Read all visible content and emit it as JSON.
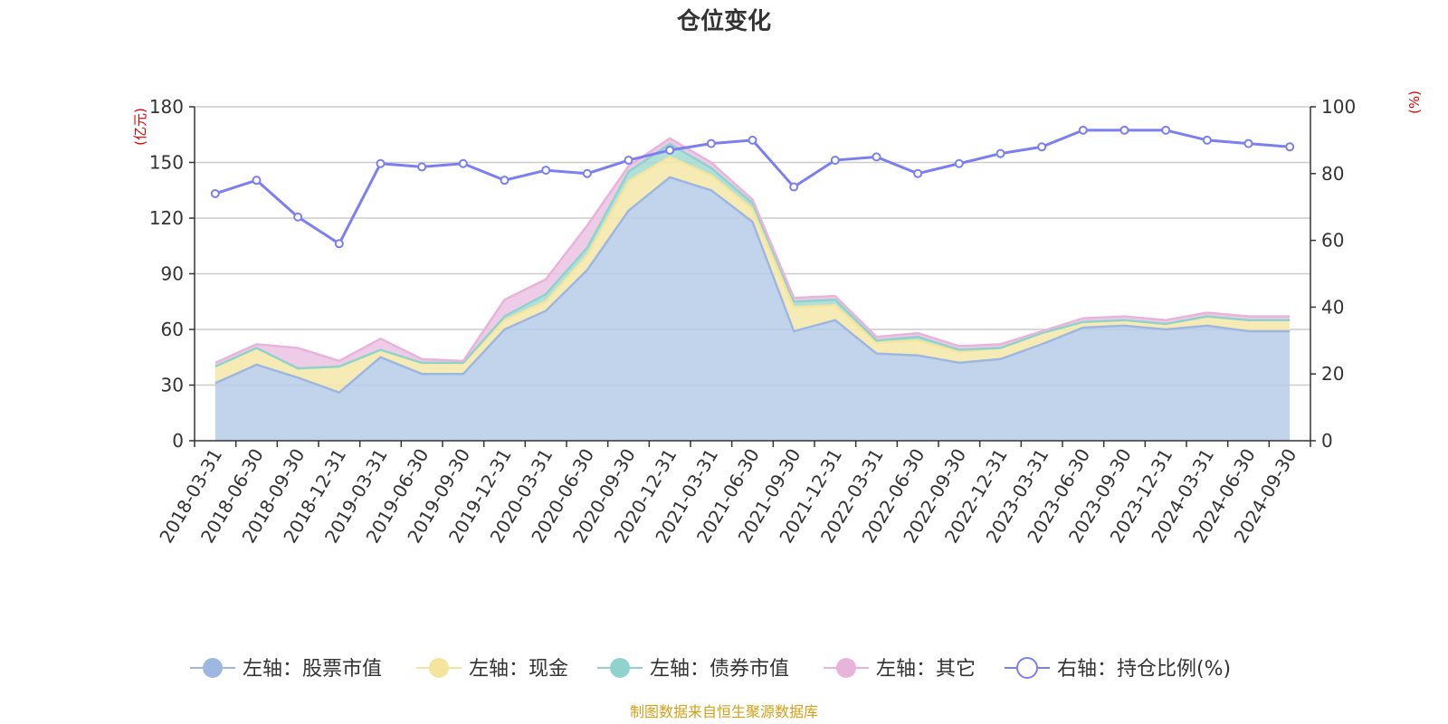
{
  "chart_data": {
    "type": "area",
    "title": "仓位变化",
    "left_axis": {
      "unit_label": "(亿元)",
      "ylim": [
        0,
        180
      ],
      "ticks": [
        0,
        30,
        60,
        90,
        120,
        150,
        180
      ]
    },
    "right_axis": {
      "unit_label": "(%)",
      "ylim": [
        0,
        100
      ],
      "ticks": [
        0,
        20,
        40,
        60,
        80,
        100
      ]
    },
    "categories": [
      "2018-03-31",
      "2018-06-30",
      "2018-09-30",
      "2018-12-31",
      "2019-03-31",
      "2019-06-30",
      "2019-09-30",
      "2019-12-31",
      "2020-03-31",
      "2020-06-30",
      "2020-09-30",
      "2020-12-31",
      "2021-03-31",
      "2021-06-30",
      "2021-09-30",
      "2021-12-31",
      "2022-03-31",
      "2022-06-30",
      "2022-09-30",
      "2022-12-31",
      "2023-03-31",
      "2023-06-30",
      "2023-09-30",
      "2023-12-31",
      "2024-03-31",
      "2024-06-30",
      "2024-09-30"
    ],
    "series": [
      {
        "name": "左轴：股票市值",
        "axis": "left",
        "stacked": true,
        "color": "#9db7e0",
        "fill": "#b7cde9",
        "values": [
          31,
          41,
          34,
          26,
          45,
          36,
          36,
          60,
          70,
          92,
          124,
          142,
          135,
          118,
          59,
          65,
          47,
          46,
          42,
          44,
          52,
          61,
          62,
          60,
          62,
          59,
          59
        ]
      },
      {
        "name": "左轴：现金",
        "axis": "left",
        "stacked": true,
        "color": "#f5e49c",
        "fill": "#f6e7a8",
        "values": [
          9,
          9,
          5,
          14,
          4,
          6,
          6,
          5,
          5,
          8,
          16,
          11,
          8,
          7,
          13,
          8,
          6,
          8,
          6,
          6,
          6,
          3,
          3,
          3,
          5,
          6,
          6
        ]
      },
      {
        "name": "左轴：债券市值",
        "axis": "left",
        "stacked": true,
        "color": "#8fd3cc",
        "fill": "#a3dbd5",
        "values": [
          0,
          0,
          0,
          0,
          0,
          0,
          0,
          2,
          4,
          4,
          5,
          7,
          4,
          3,
          3,
          3,
          1,
          2,
          1,
          0,
          0,
          0,
          0,
          0,
          0,
          0,
          0
        ]
      },
      {
        "name": "左轴：其它",
        "axis": "left",
        "stacked": true,
        "color": "#e8b4dc",
        "fill": "#ebc2e2",
        "values": [
          2,
          2,
          11,
          3,
          6,
          2,
          1,
          9,
          8,
          12,
          3,
          3,
          3,
          2,
          2,
          2,
          2,
          2,
          2,
          2,
          1,
          2,
          2,
          2,
          2,
          2,
          2
        ]
      },
      {
        "name": "右轴：持仓比例(%)",
        "axis": "right",
        "type": "line",
        "color": "#7b7fef",
        "values": [
          74,
          78,
          67,
          59,
          83,
          82,
          83,
          78,
          81,
          80,
          84,
          87,
          89,
          90,
          76,
          84,
          85,
          80,
          83,
          86,
          88,
          93,
          93,
          93,
          90,
          89,
          88
        ]
      }
    ],
    "grid": true,
    "legend_position": "bottom",
    "source_note": "制图数据来自恒生聚源数据库",
    "source_color": "#d4a017"
  }
}
